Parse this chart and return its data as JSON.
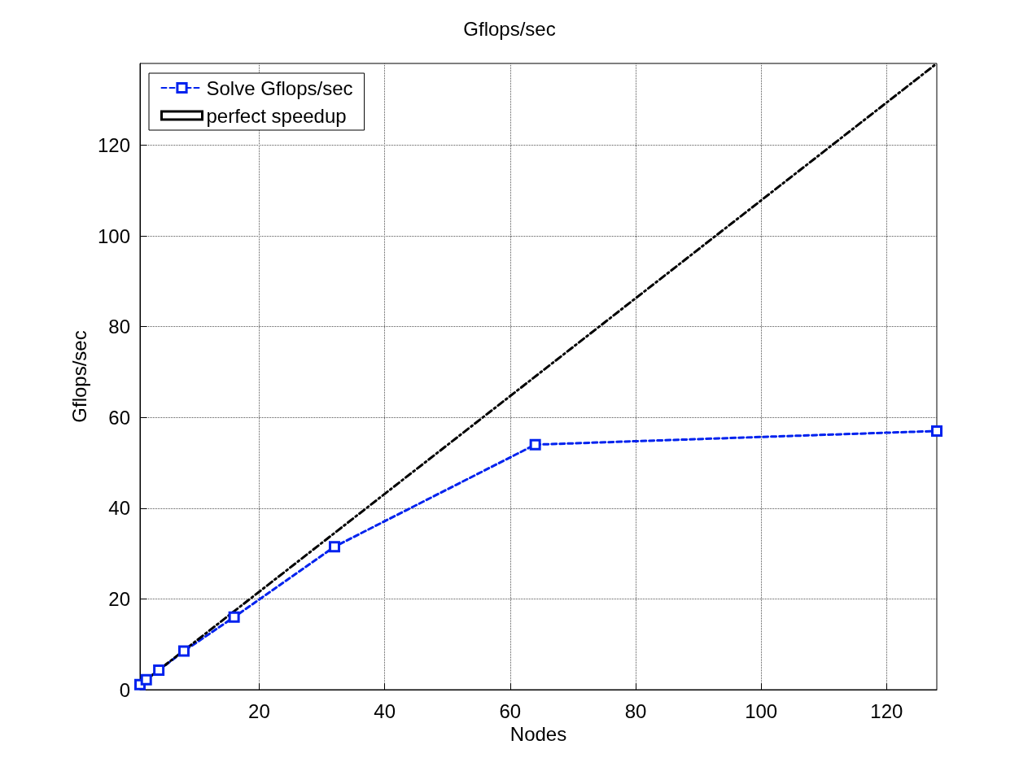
{
  "chart_data": {
    "type": "line",
    "title": "Gflops/sec",
    "xlabel": "Nodes",
    "ylabel": "Gflops/sec",
    "series": [
      {
        "name": "Solve Gflops/sec",
        "color": "#0022ee",
        "x": [
          1,
          2,
          4,
          8,
          16,
          32,
          64,
          128
        ],
        "values": [
          1.1,
          2.2,
          4.3,
          8.5,
          16,
          31.5,
          54,
          57
        ],
        "marker": "square",
        "line_style": "dashed"
      },
      {
        "name": "perfect speedup",
        "color": "#000000",
        "x": [
          1,
          128
        ],
        "values": [
          1.1,
          138
        ],
        "marker": "none",
        "line_style": "dashdot"
      }
    ],
    "xlim": [
      1,
      128
    ],
    "xticks": [
      20,
      40,
      60,
      80,
      100,
      120
    ],
    "ylim": [
      0,
      138
    ],
    "yticks": [
      0,
      20,
      40,
      60,
      80,
      100,
      120
    ],
    "grid": true,
    "legend": "top left"
  }
}
